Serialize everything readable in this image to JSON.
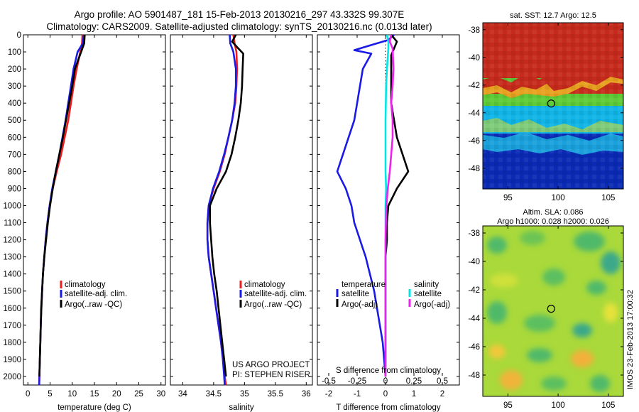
{
  "title": {
    "line1": "Argo profile: AO 5901487_181 15-Feb-2013 20130216_297 43.332S 99.307E",
    "line2": "Climatology: CARS2009. Satellite-adjusted climatology: synTS_20130216.nc (0.013d later)"
  },
  "colors": {
    "climatology": "#ee1c1c",
    "satellite": "#1a1ae6",
    "argo": "#000000",
    "sal_satellite": "#00e5e5",
    "sal_argo": "#ee22ee"
  },
  "chart_data": [
    {
      "type": "line",
      "name": "temperature",
      "xlabel": "temperature (deg C)",
      "xlim": [
        -1,
        31
      ],
      "ylim": [
        2050,
        0
      ],
      "xticks": [
        0,
        5,
        10,
        15,
        20,
        25,
        30
      ],
      "yticks": [
        0,
        100,
        200,
        300,
        400,
        500,
        600,
        700,
        800,
        900,
        1000,
        1100,
        1200,
        1300,
        1400,
        1500,
        1600,
        1700,
        1800,
        1900,
        2000
      ],
      "legend": [
        "climatology",
        "satellite-adj. clim.",
        "Argo(..raw -QC)"
      ],
      "legend_position": "lower-right",
      "series": [
        {
          "name": "climatology",
          "color_key": "climatology",
          "points": [
            [
              12.3,
              0
            ],
            [
              12.2,
              50
            ],
            [
              11.8,
              100
            ],
            [
              11.0,
              200
            ],
            [
              10.3,
              300
            ],
            [
              9.7,
              400
            ],
            [
              9.1,
              500
            ],
            [
              8.3,
              600
            ],
            [
              7.5,
              700
            ],
            [
              6.5,
              800
            ],
            [
              5.6,
              900
            ],
            [
              4.9,
              1000
            ],
            [
              4.4,
              1100
            ],
            [
              4.0,
              1200
            ],
            [
              3.7,
              1300
            ],
            [
              3.4,
              1400
            ],
            [
              3.2,
              1500
            ],
            [
              3.05,
              1600
            ],
            [
              2.9,
              1700
            ],
            [
              2.8,
              1800
            ],
            [
              2.7,
              1900
            ],
            [
              2.6,
              2000
            ],
            [
              2.55,
              2050
            ]
          ]
        },
        {
          "name": "satellite-adj. clim.",
          "color_key": "satellite",
          "points": [
            [
              12.6,
              0
            ],
            [
              12.4,
              50
            ],
            [
              11.2,
              100
            ],
            [
              10.3,
              200
            ],
            [
              9.7,
              300
            ],
            [
              9.1,
              400
            ],
            [
              8.5,
              500
            ],
            [
              7.8,
              600
            ],
            [
              7.1,
              700
            ],
            [
              6.3,
              800
            ],
            [
              5.5,
              900
            ],
            [
              4.9,
              1000
            ],
            [
              4.4,
              1100
            ],
            [
              4.0,
              1200
            ],
            [
              3.7,
              1300
            ],
            [
              3.4,
              1400
            ],
            [
              3.2,
              1500
            ],
            [
              3.05,
              1600
            ],
            [
              2.9,
              1700
            ],
            [
              2.8,
              1800
            ],
            [
              2.7,
              1900
            ],
            [
              2.6,
              2000
            ],
            [
              2.55,
              2050
            ]
          ]
        },
        {
          "name": "Argo(..raw -QC)",
          "color_key": "argo",
          "points": [
            [
              12.8,
              0
            ],
            [
              12.7,
              50
            ],
            [
              12.0,
              100
            ],
            [
              10.6,
              200
            ],
            [
              10.0,
              300
            ],
            [
              9.3,
              400
            ],
            [
              8.6,
              500
            ],
            [
              7.9,
              600
            ],
            [
              7.1,
              700
            ],
            [
              6.3,
              800
            ],
            [
              5.6,
              900
            ],
            [
              5.0,
              1000
            ],
            [
              4.5,
              1100
            ],
            [
              4.1,
              1200
            ],
            [
              3.7,
              1300
            ],
            [
              3.4,
              1400
            ],
            [
              3.2,
              1500
            ],
            [
              3.0,
              1600
            ],
            [
              2.9,
              1700
            ],
            [
              2.8,
              1800
            ],
            [
              2.7,
              1900
            ],
            [
              2.6,
              2000
            ]
          ]
        }
      ]
    },
    {
      "type": "line",
      "name": "salinity",
      "xlabel": "salinity",
      "xlim": [
        33.8,
        36.1
      ],
      "ylim": [
        2050,
        0
      ],
      "xticks": [
        34,
        34.5,
        35,
        35.5,
        36
      ],
      "legend": [
        "climatology",
        "satellite-adj. clim.",
        "Argo(..raw -QC)"
      ],
      "legend_position": "lower-right",
      "annotations": [
        "US ARGO PROJECT",
        "PI: STEPHEN RISER"
      ],
      "series": [
        {
          "name": "climatology",
          "color_key": "climatology",
          "points": [
            [
              34.82,
              0
            ],
            [
              34.84,
              50
            ],
            [
              34.87,
              100
            ],
            [
              34.88,
              200
            ],
            [
              34.87,
              300
            ],
            [
              34.85,
              400
            ],
            [
              34.8,
              500
            ],
            [
              34.74,
              600
            ],
            [
              34.68,
              700
            ],
            [
              34.6,
              800
            ],
            [
              34.5,
              900
            ],
            [
              34.42,
              1000
            ],
            [
              34.4,
              1100
            ],
            [
              34.4,
              1200
            ],
            [
              34.42,
              1300
            ],
            [
              34.46,
              1400
            ],
            [
              34.5,
              1500
            ],
            [
              34.54,
              1600
            ],
            [
              34.58,
              1700
            ],
            [
              34.62,
              1800
            ],
            [
              34.65,
              1900
            ],
            [
              34.68,
              2000
            ],
            [
              34.7,
              2050
            ]
          ]
        },
        {
          "name": "satellite-adj. clim.",
          "color_key": "satellite",
          "points": [
            [
              34.76,
              0
            ],
            [
              34.77,
              50
            ],
            [
              34.82,
              100
            ],
            [
              34.86,
              200
            ],
            [
              34.86,
              300
            ],
            [
              34.84,
              400
            ],
            [
              34.8,
              500
            ],
            [
              34.74,
              600
            ],
            [
              34.67,
              700
            ],
            [
              34.59,
              800
            ],
            [
              34.49,
              900
            ],
            [
              34.42,
              1000
            ],
            [
              34.4,
              1100
            ],
            [
              34.4,
              1200
            ],
            [
              34.42,
              1300
            ],
            [
              34.46,
              1400
            ],
            [
              34.5,
              1500
            ],
            [
              34.54,
              1600
            ],
            [
              34.58,
              1700
            ],
            [
              34.62,
              1800
            ],
            [
              34.65,
              1900
            ],
            [
              34.67,
              2000
            ],
            [
              34.68,
              2050
            ]
          ]
        },
        {
          "name": "Argo(..raw -QC)",
          "color_key": "argo",
          "points": [
            [
              34.86,
              0
            ],
            [
              34.8,
              40
            ],
            [
              34.9,
              80
            ],
            [
              34.98,
              110
            ],
            [
              34.97,
              200
            ],
            [
              34.96,
              300
            ],
            [
              34.94,
              400
            ],
            [
              34.9,
              500
            ],
            [
              34.85,
              600
            ],
            [
              34.79,
              700
            ],
            [
              34.7,
              800
            ],
            [
              34.55,
              900
            ],
            [
              34.44,
              1000
            ],
            [
              34.44,
              1100
            ],
            [
              34.46,
              1200
            ],
            [
              34.48,
              1300
            ],
            [
              34.51,
              1400
            ],
            [
              34.55,
              1500
            ],
            [
              34.58,
              1600
            ],
            [
              34.61,
              1700
            ],
            [
              34.64,
              1800
            ],
            [
              34.67,
              1900
            ],
            [
              34.7,
              2000
            ]
          ]
        }
      ]
    },
    {
      "type": "line",
      "name": "difference",
      "xlabel": "T difference from climatology",
      "xlabel_top": "S difference from climatology",
      "xlim": [
        -2.4,
        2.6
      ],
      "ylim": [
        2050,
        0
      ],
      "xticks": [
        -2,
        -1,
        0,
        1,
        2
      ],
      "xticks_s_labels": [
        "-0.5",
        "-0.25",
        "0",
        "0.25",
        "0.5"
      ],
      "xticks_s_values": [
        -0.5,
        -0.25,
        0,
        0.25,
        0.5
      ],
      "legend_titles": [
        "temperature",
        "salinity"
      ],
      "legend": [
        "satellite",
        "Argo(-adj)",
        "satellite",
        "Argo(-adj)"
      ],
      "series": [
        {
          "name": "satellite",
          "group": "temperature",
          "color_key": "satellite",
          "points": [
            [
              0.3,
              0
            ],
            [
              0.1,
              30
            ],
            [
              -0.5,
              60
            ],
            [
              -1.1,
              90
            ],
            [
              -0.5,
              110
            ],
            [
              -0.8,
              200
            ],
            [
              -0.9,
              300
            ],
            [
              -1.0,
              400
            ],
            [
              -1.1,
              500
            ],
            [
              -1.3,
              600
            ],
            [
              -1.5,
              700
            ],
            [
              -1.7,
              800
            ],
            [
              -1.4,
              900
            ],
            [
              -1.2,
              1000
            ],
            [
              -1.1,
              1100
            ],
            [
              -0.9,
              1200
            ],
            [
              -0.7,
              1300
            ],
            [
              -0.55,
              1400
            ],
            [
              -0.4,
              1500
            ],
            [
              -0.3,
              1600
            ],
            [
              -0.2,
              1700
            ],
            [
              -0.1,
              1800
            ],
            [
              -0.05,
              1900
            ],
            [
              0,
              2000
            ]
          ]
        },
        {
          "name": "Argo(-adj)",
          "group": "temperature",
          "color_key": "argo",
          "points": [
            [
              0.2,
              0
            ],
            [
              0.4,
              40
            ],
            [
              0.3,
              80
            ],
            [
              0.2,
              120
            ],
            [
              0.2,
              200
            ],
            [
              0.2,
              300
            ],
            [
              0.2,
              400
            ],
            [
              0.3,
              500
            ],
            [
              0.4,
              600
            ],
            [
              0.6,
              700
            ],
            [
              0.8,
              800
            ],
            [
              0.4,
              900
            ],
            [
              0.1,
              1000
            ],
            [
              0.05,
              1100
            ],
            [
              0.05,
              1200
            ],
            [
              0,
              1300
            ],
            [
              0,
              1400
            ],
            [
              0,
              1500
            ],
            [
              0,
              1600
            ],
            [
              0,
              1700
            ],
            [
              0,
              1800
            ],
            [
              0,
              1900
            ],
            [
              0,
              2000
            ]
          ]
        },
        {
          "name": "satellite",
          "group": "salinity",
          "color_key": "sal_satellite",
          "points": [
            [
              0.05,
              0
            ],
            [
              0.1,
              40
            ],
            [
              0.1,
              80
            ],
            [
              0.05,
              200
            ],
            [
              0.02,
              300
            ],
            [
              0,
              500
            ],
            [
              0,
              600
            ],
            [
              0,
              700
            ],
            [
              0,
              800
            ],
            [
              0.02,
              900
            ],
            [
              0,
              1000
            ],
            [
              0,
              1200
            ],
            [
              0,
              1400
            ],
            [
              0,
              1600
            ],
            [
              0,
              1800
            ],
            [
              0,
              2000
            ]
          ]
        },
        {
          "name": "Argo(-adj)",
          "group": "salinity",
          "color_key": "sal_argo",
          "points": [
            [
              0.2,
              0
            ],
            [
              0.15,
              40
            ],
            [
              0.25,
              80
            ],
            [
              0.28,
              200
            ],
            [
              0.25,
              300
            ],
            [
              0.2,
              400
            ],
            [
              0.25,
              500
            ],
            [
              0.25,
              600
            ],
            [
              0.2,
              700
            ],
            [
              0.15,
              800
            ],
            [
              0.08,
              900
            ],
            [
              0.03,
              1000
            ],
            [
              0,
              1200
            ],
            [
              0,
              1400
            ],
            [
              0,
              1600
            ],
            [
              0,
              1800
            ],
            [
              0,
              2000
            ]
          ]
        }
      ]
    },
    {
      "type": "heatmap",
      "name": "sst-map",
      "title": "sat. SST: 12.7 Argo: 12.5",
      "xlim": [
        92.5,
        106.5
      ],
      "ylim": [
        -49.5,
        -37.5
      ],
      "xticks": [
        95,
        100,
        105
      ],
      "yticks": [
        -38,
        -40,
        -42,
        -44,
        -46,
        -48
      ],
      "marker": {
        "lon": 99.307,
        "lat": -43.332
      },
      "color_bands": [
        {
          "lat_from": -37.5,
          "lat_to": -41.5,
          "color": "#c62a1c"
        },
        {
          "lat_from": -41.5,
          "lat_to": -43.5,
          "color": "#5ecb37"
        },
        {
          "lat_from": -43.5,
          "lat_to": -45.5,
          "color": "#10b4e6"
        },
        {
          "lat_from": -45.5,
          "lat_to": -49.5,
          "color": "#0a2ab4"
        }
      ]
    },
    {
      "type": "heatmap",
      "name": "sla-map",
      "title": "Altim. SLA: 0.086",
      "subtitle": "Argo h1000: 0.028 h2000: 0.026",
      "side_label": "IMOS 23-Feb-2013 17:00:32",
      "xlim": [
        92.5,
        106.5
      ],
      "ylim": [
        -49.5,
        -37.5
      ],
      "xticks": [
        95,
        100,
        105
      ],
      "yticks": [
        -38,
        -40,
        -42,
        -44,
        -46,
        -48
      ],
      "marker": {
        "lon": 99.307,
        "lat": -43.332
      },
      "base_color": "#a9d93a"
    }
  ]
}
